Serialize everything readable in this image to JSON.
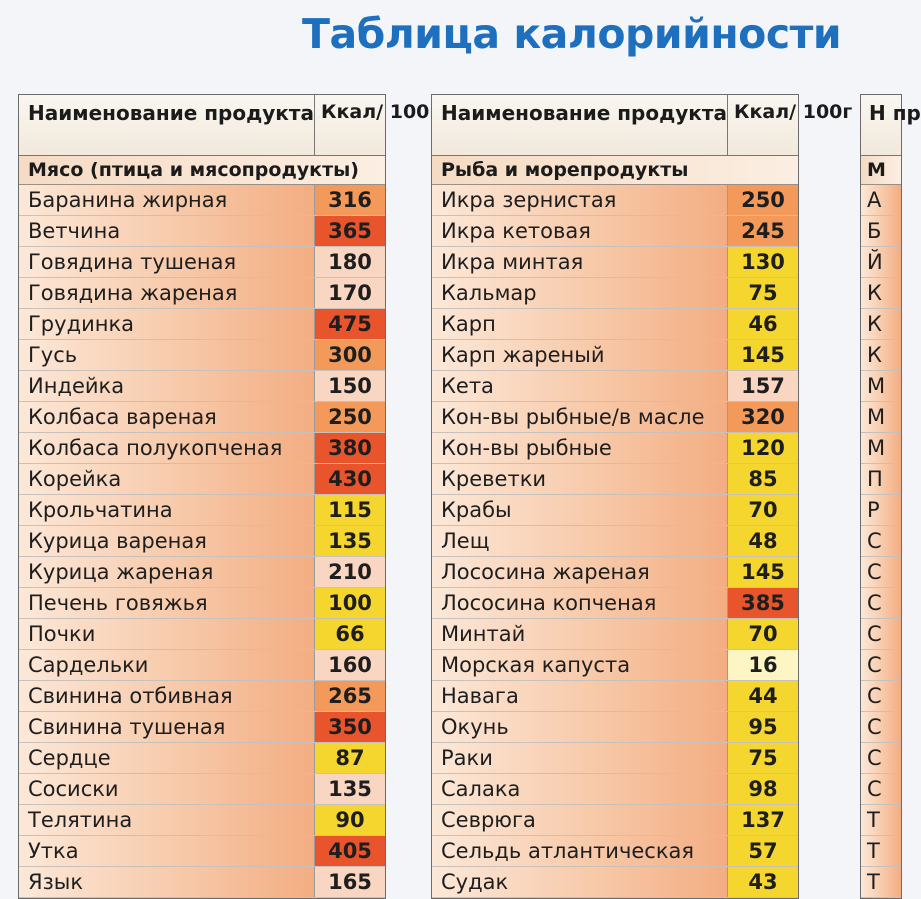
{
  "title": "Таблица калорийности",
  "header": {
    "name": "Наименование продукта",
    "kcal": "Ккал/ 100г"
  },
  "colors": {
    "red": "#e8542c",
    "orange": "#f39a5a",
    "peach": "#f8d6c2",
    "yellow": "#f5d62e",
    "pale_yellow": "#fdf6c4"
  },
  "tables": [
    {
      "category": "Мясо (птица и мясопродукты)",
      "rows": [
        {
          "name": "Баранина жирная",
          "kcal": "316",
          "level": "orange"
        },
        {
          "name": "Ветчина",
          "kcal": "365",
          "level": "red"
        },
        {
          "name": "Говядина тушеная",
          "kcal": "180",
          "level": "peach"
        },
        {
          "name": "Говядина жареная",
          "kcal": "170",
          "level": "peach"
        },
        {
          "name": "Грудинка",
          "kcal": "475",
          "level": "red"
        },
        {
          "name": "Гусь",
          "kcal": "300",
          "level": "orange"
        },
        {
          "name": "Индейка",
          "kcal": "150",
          "level": "peach"
        },
        {
          "name": "Колбаса вареная",
          "kcal": "250",
          "level": "orange"
        },
        {
          "name": "Колбаса полукопченая",
          "kcal": "380",
          "level": "red"
        },
        {
          "name": "Корейка",
          "kcal": "430",
          "level": "red"
        },
        {
          "name": "Крольчатина",
          "kcal": "115",
          "level": "yellow"
        },
        {
          "name": "Курица вареная",
          "kcal": "135",
          "level": "yellow"
        },
        {
          "name": "Курица жареная",
          "kcal": "210",
          "level": "peach"
        },
        {
          "name": "Печень говяжья",
          "kcal": "100",
          "level": "yellow"
        },
        {
          "name": "Почки",
          "kcal": "66",
          "level": "yellow"
        },
        {
          "name": "Сардельки",
          "kcal": "160",
          "level": "peach"
        },
        {
          "name": "Свинина отбивная",
          "kcal": "265",
          "level": "orange"
        },
        {
          "name": "Свинина тушеная",
          "kcal": "350",
          "level": "red"
        },
        {
          "name": "Сердце",
          "kcal": "87",
          "level": "yellow"
        },
        {
          "name": "Сосиски",
          "kcal": "135",
          "level": "peach"
        },
        {
          "name": "Телятина",
          "kcal": "90",
          "level": "yellow"
        },
        {
          "name": "Утка",
          "kcal": "405",
          "level": "red"
        },
        {
          "name": "Язык",
          "kcal": "165",
          "level": "peach"
        }
      ]
    },
    {
      "category": "Рыба и морепродукты",
      "rows": [
        {
          "name": "Икра зернистая",
          "kcal": "250",
          "level": "orange"
        },
        {
          "name": "Икра кетовая",
          "kcal": "245",
          "level": "orange"
        },
        {
          "name": "Икра минтая",
          "kcal": "130",
          "level": "yellow"
        },
        {
          "name": "Кальмар",
          "kcal": "75",
          "level": "yellow"
        },
        {
          "name": "Карп",
          "kcal": "46",
          "level": "yellow"
        },
        {
          "name": "Карп жареный",
          "kcal": "145",
          "level": "yellow"
        },
        {
          "name": "Кета",
          "kcal": "157",
          "level": "peach"
        },
        {
          "name": "Кон-вы рыбные/в масле",
          "kcal": "320",
          "level": "orange"
        },
        {
          "name": "Кон-вы рыбные",
          "kcal": "120",
          "level": "yellow"
        },
        {
          "name": "Креветки",
          "kcal": "85",
          "level": "yellow"
        },
        {
          "name": "Крабы",
          "kcal": "70",
          "level": "yellow"
        },
        {
          "name": "Лещ",
          "kcal": "48",
          "level": "yellow"
        },
        {
          "name": "Лососина жареная",
          "kcal": "145",
          "level": "yellow"
        },
        {
          "name": "Лососина копченая",
          "kcal": "385",
          "level": "red"
        },
        {
          "name": "Минтай",
          "kcal": "70",
          "level": "yellow"
        },
        {
          "name": "Морская капуста",
          "kcal": "16",
          "level": "pale_yellow"
        },
        {
          "name": "Навага",
          "kcal": "44",
          "level": "yellow"
        },
        {
          "name": "Окунь",
          "kcal": "95",
          "level": "yellow"
        },
        {
          "name": "Раки",
          "kcal": "75",
          "level": "yellow"
        },
        {
          "name": "Салака",
          "kcal": "98",
          "level": "yellow"
        },
        {
          "name": "Севрюга",
          "kcal": "137",
          "level": "yellow"
        },
        {
          "name": "Сельдь атлантическая",
          "kcal": "57",
          "level": "yellow"
        },
        {
          "name": "Судак",
          "kcal": "43",
          "level": "yellow"
        }
      ]
    },
    {
      "header_name": "Н пр",
      "category": "М",
      "rows": [
        {
          "name": "А"
        },
        {
          "name": "Б"
        },
        {
          "name": "Й"
        },
        {
          "name": "К"
        },
        {
          "name": "К"
        },
        {
          "name": "К"
        },
        {
          "name": "М"
        },
        {
          "name": "М"
        },
        {
          "name": "М"
        },
        {
          "name": "П"
        },
        {
          "name": "Р"
        },
        {
          "name": "С"
        },
        {
          "name": "С"
        },
        {
          "name": "С"
        },
        {
          "name": "С"
        },
        {
          "name": "С"
        },
        {
          "name": "С"
        },
        {
          "name": "С"
        },
        {
          "name": "С"
        },
        {
          "name": "С"
        },
        {
          "name": "Т"
        },
        {
          "name": "Т"
        },
        {
          "name": "Т"
        }
      ]
    }
  ]
}
